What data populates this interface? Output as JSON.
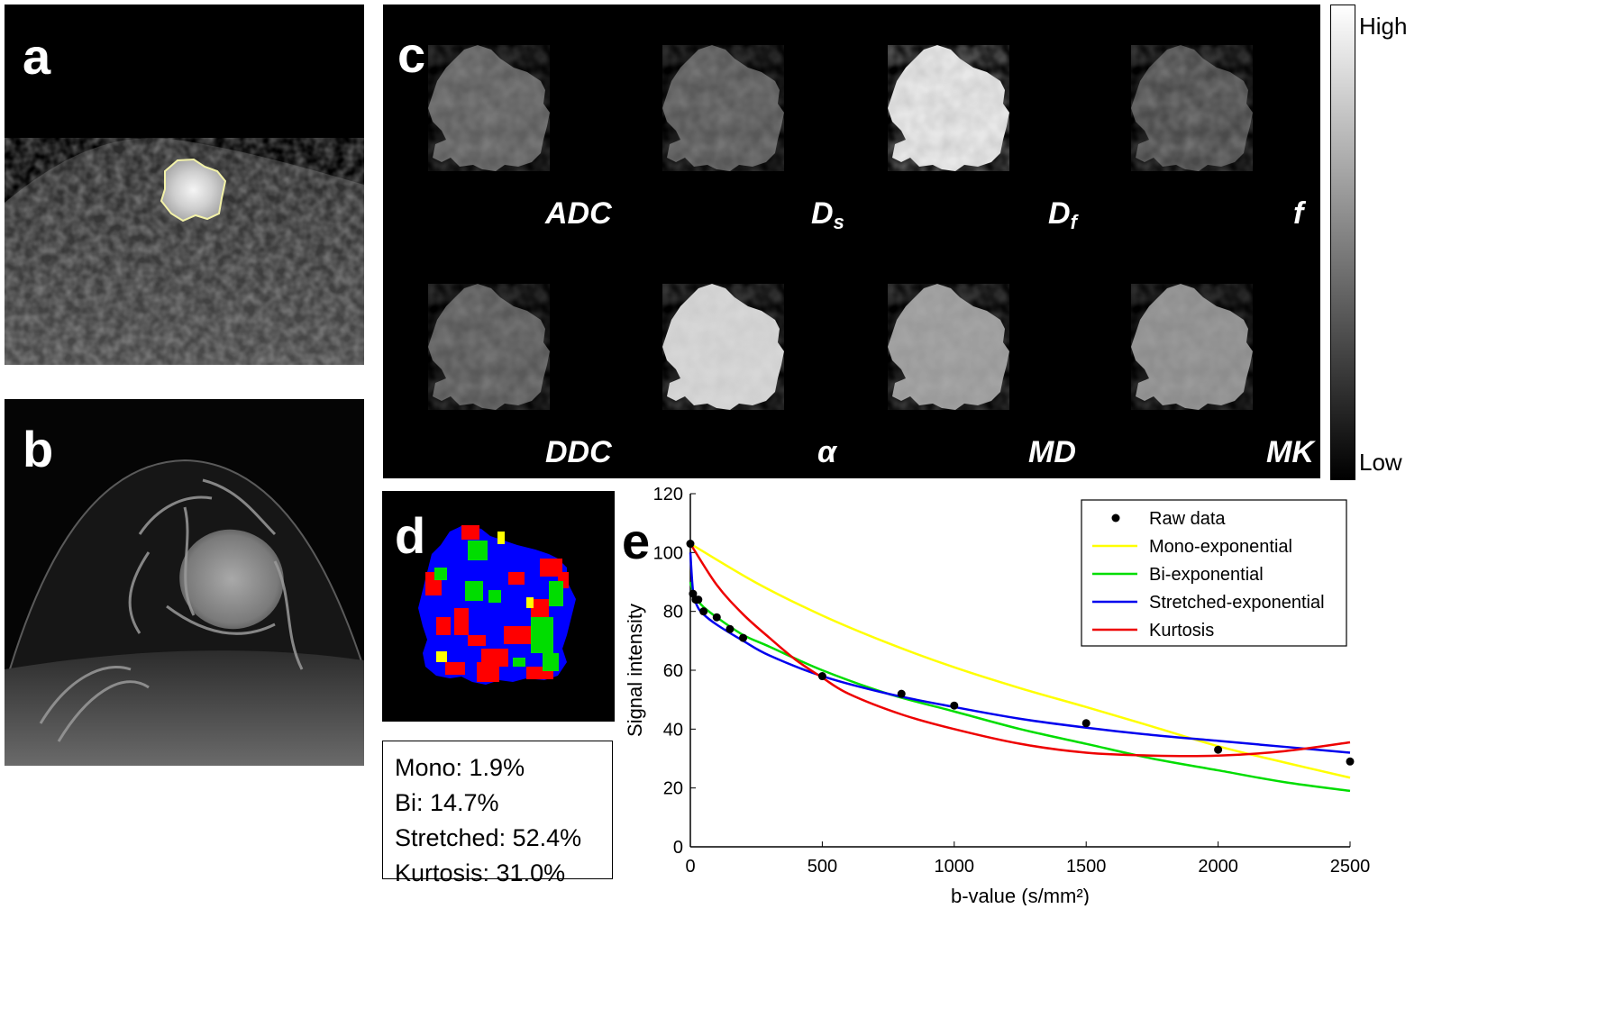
{
  "panels": {
    "a": {
      "label": "a"
    },
    "b": {
      "label": "b"
    },
    "c": {
      "label": "c",
      "maps": [
        {
          "name": "ADC",
          "sub": ""
        },
        {
          "name": "D",
          "sub": "s"
        },
        {
          "name": "D",
          "sub": "f"
        },
        {
          "name": "f",
          "sub": ""
        },
        {
          "name": "DDC",
          "sub": ""
        },
        {
          "name": "α",
          "sub": ""
        },
        {
          "name": "MD",
          "sub": ""
        },
        {
          "name": "MK",
          "sub": ""
        }
      ]
    },
    "d": {
      "label": "d"
    },
    "e": {
      "label": "e"
    }
  },
  "colorbar": {
    "high": "High",
    "low": "Low"
  },
  "stats": {
    "mono": "Mono:  1.9%",
    "bi": "Bi: 14.7%",
    "stretched": "Stretched: 52.4%",
    "kurtosis": "Kurtosis: 31.0%"
  },
  "colors": {
    "mono": "#ffff00",
    "bi": "#00dd00",
    "stretched": "#0000ee",
    "kurtosis": "#ee0000",
    "raw": "#000000"
  },
  "chart_data": {
    "type": "line",
    "xlabel": "b-value (s/mm²)",
    "ylabel": "Signal intensity",
    "xlim": [
      0,
      2500
    ],
    "ylim": [
      0,
      120
    ],
    "xticks": [
      0,
      500,
      1000,
      1500,
      2000,
      2500
    ],
    "yticks": [
      0,
      20,
      40,
      60,
      80,
      100,
      120
    ],
    "legend": "top-right",
    "raw_data": {
      "name": "Raw data",
      "x": [
        0,
        10,
        20,
        30,
        50,
        100,
        150,
        200,
        500,
        800,
        1000,
        1500,
        2000,
        2500
      ],
      "y": [
        103,
        86,
        84,
        84,
        80,
        78,
        74,
        71,
        58,
        52,
        48,
        42,
        33,
        29
      ]
    },
    "series": [
      {
        "name": "Mono-exponential",
        "color": "#ffff00",
        "x": [
          0,
          250,
          500,
          750,
          1000,
          1250,
          1500,
          1750,
          2000,
          2250,
          2500
        ],
        "y": [
          103,
          89.7,
          78.6,
          69.2,
          61.0,
          53.9,
          47.5,
          40.9,
          34.2,
          28.7,
          23.5
        ]
      },
      {
        "name": "Bi-exponential",
        "color": "#00dd00",
        "x": [
          0,
          10,
          25,
          50,
          100,
          200,
          300,
          500,
          750,
          1000,
          1250,
          1500,
          1750,
          2000,
          2250,
          2500
        ],
        "y": [
          90,
          86.5,
          84,
          81.5,
          78,
          72,
          68,
          60,
          52,
          46,
          40,
          35,
          30,
          26,
          22,
          19
        ]
      },
      {
        "name": "Stretched-exponential",
        "color": "#0000ee",
        "x": [
          0,
          10,
          25,
          50,
          100,
          200,
          300,
          500,
          750,
          1000,
          1250,
          1500,
          1750,
          2000,
          2250,
          2500
        ],
        "y": [
          100,
          87,
          82,
          79,
          75.5,
          70,
          65,
          58,
          52,
          47.5,
          43.5,
          40.5,
          38,
          36,
          34,
          32
        ]
      },
      {
        "name": "Kurtosis",
        "color": "#ee0000",
        "x": [
          0,
          100,
          200,
          300,
          400,
          500,
          600,
          800,
          1000,
          1250,
          1500,
          1750,
          2000,
          2250,
          2500
        ],
        "y": [
          103,
          89,
          79,
          71,
          63.5,
          57.5,
          52,
          45,
          40,
          35,
          32,
          31,
          31,
          32.5,
          35.5
        ]
      }
    ]
  }
}
